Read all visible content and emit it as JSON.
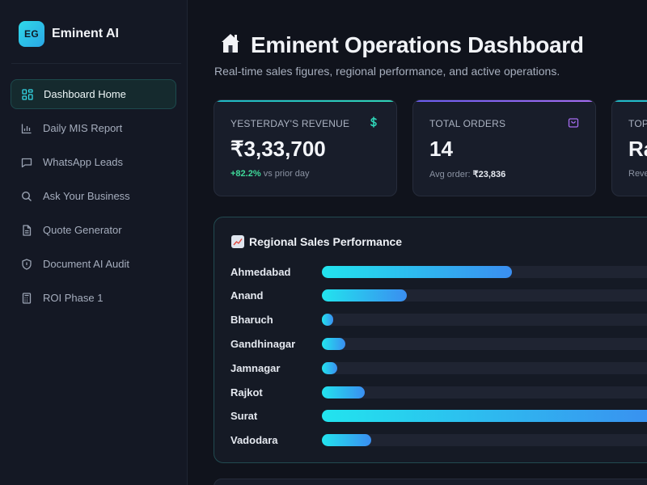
{
  "brand": {
    "logo_text": "EG",
    "name": "Eminent AI",
    "accent": "#2fd9e8"
  },
  "sidebar": {
    "items": [
      {
        "label": "Dashboard Home",
        "icon": "grid-icon",
        "active": true
      },
      {
        "label": "Daily MIS Report",
        "icon": "bar-chart-icon",
        "active": false
      },
      {
        "label": "WhatsApp Leads",
        "icon": "chat-icon",
        "active": false
      },
      {
        "label": "Ask Your Business",
        "icon": "search-icon",
        "active": false
      },
      {
        "label": "Quote Generator",
        "icon": "document-icon",
        "active": false
      },
      {
        "label": "Document AI Audit",
        "icon": "shield-icon",
        "active": false
      },
      {
        "label": "ROI Phase 1",
        "icon": "calculator-icon",
        "active": false
      }
    ]
  },
  "header": {
    "title": "Eminent Operations Dashboard",
    "subtitle": "Real-time sales figures, regional performance, and active operations."
  },
  "stats": {
    "revenue": {
      "label": "YESTERDAY'S REVENUE",
      "value": "₹3,33,700",
      "change": "+82.2%",
      "change_suffix": "vs prior day",
      "icon": "dollar-icon",
      "color": "#2fd3b6"
    },
    "orders": {
      "label": "TOTAL ORDERS",
      "value": "14",
      "sub_label": "Avg order:",
      "sub_value": "₹23,836",
      "icon": "shopping-bag-icon",
      "color": "#a56cf0"
    },
    "top": {
      "label": "TOP",
      "value": "Ra",
      "sub_label": "Reve",
      "color": "#2fd9e8"
    }
  },
  "region_panel": {
    "title": "Regional Sales Performance",
    "icon": "chart-increasing-icon"
  },
  "chart_data": {
    "type": "bar",
    "title": "Regional Sales Performance",
    "orientation": "horizontal",
    "categories": [
      "Ahmedabad",
      "Anand",
      "Bharuch",
      "Gandhinagar",
      "Jamnagar",
      "Rajkot",
      "Surat",
      "Vadodara"
    ],
    "values": [
      0.56,
      0.25,
      0.03,
      0.07,
      0.045,
      0.125,
      1.0,
      0.145
    ],
    "xlim": [
      0,
      1
    ],
    "grid": false,
    "colors": [
      "#22e4ee",
      "#3a8ef0"
    ]
  }
}
